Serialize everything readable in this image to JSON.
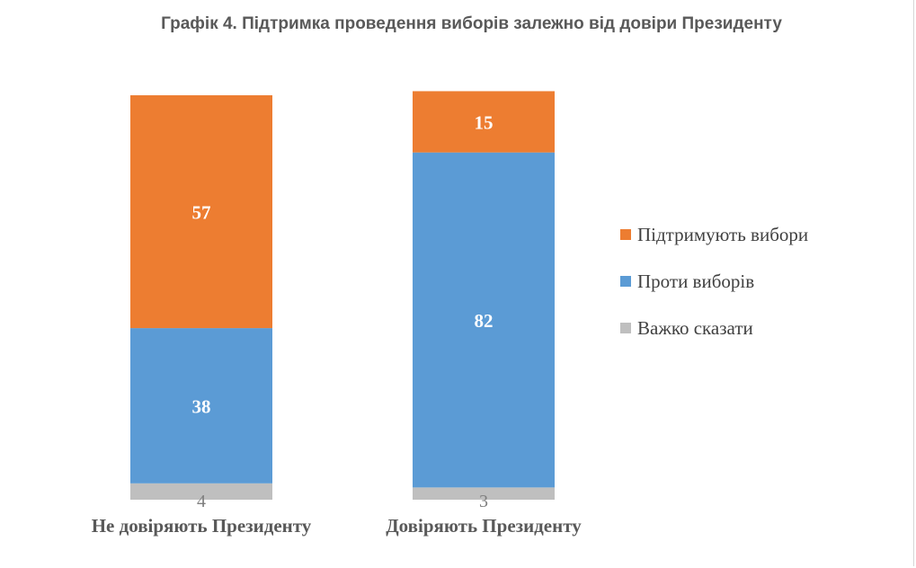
{
  "chart_data": {
    "type": "bar",
    "stacked": true,
    "title": "Графік 4. Підтримка проведення виборів залежно від довіри Президенту",
    "categories": [
      "Не довіряють Президенту",
      "Довіряють Президенту"
    ],
    "series": [
      {
        "name": "Важко сказати",
        "values": [
          4,
          3
        ],
        "color": "#bfbfbf"
      },
      {
        "name": "Проти виборів",
        "values": [
          38,
          82
        ],
        "color": "#5b9bd5"
      },
      {
        "name": "Підтримують вибори",
        "values": [
          57,
          15
        ],
        "color": "#ed7d31"
      }
    ],
    "legend_position": "right",
    "legend_order": [
      "Підтримують вибори",
      "Проти виборів",
      "Важко сказати"
    ],
    "ylim": [
      0,
      100
    ],
    "grid": false
  }
}
